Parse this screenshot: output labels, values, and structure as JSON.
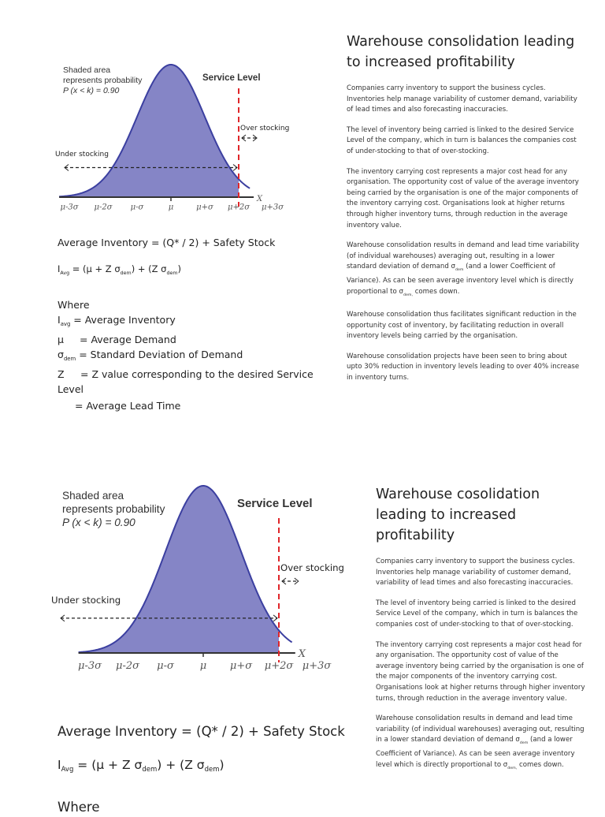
{
  "graph": {
    "shaded_note": [
      "Shaded area",
      "represents probability",
      "P (x < k) = 0.90"
    ],
    "service_level": "Service Level",
    "over_stocking": "Over stocking",
    "under_stocking": "Under stocking",
    "x_axis": "X",
    "ticks": [
      "μ-3σ",
      "μ-2σ",
      "μ-σ",
      "μ",
      "μ+σ",
      "μ+2σ",
      "μ+3σ"
    ],
    "probability": 0.9,
    "colors": {
      "fill": "#8585c6",
      "curve": "#3b3fa0",
      "service_line": "#e0262a"
    }
  },
  "formulas": {
    "avg_inventory": "Average Inventory = (Q* / 2) + Safety Stock",
    "i_avg_prefix": "I",
    "i_avg_sub": "Avg",
    "i_avg_eq1": " = (μ + Z σ",
    "dem": "dem",
    "i_avg_eq2": ") + (Z σ",
    "close": ")",
    "where": "Where",
    "def_iavg_sub": "avg",
    "def_iavg": " = Average Inventory",
    "def_mu_sym": "μ",
    "def_mu": "= Average Demand",
    "def_sigma_sym": "σ",
    "def_sigma": "= Standard Deviation of Demand",
    "def_z_sym": "Z",
    "def_z": "= Z value corresponding to the desired Service Level",
    "def_lt": "= Average Lead Time"
  },
  "slide1": {
    "title": "Warehouse consolidation leading to increased profitability",
    "paragraphs": [
      "Companies carry inventory to support the business cycles. Inventories help manage variability of customer demand, variability of lead times and also forecasting inaccuracies.",
      "The level of inventory being carried is linked to the desired Service Level of the company, which in turn is balances the companies cost of under-stocking to that of over-stocking.",
      "The inventory carrying cost represents a major cost head for any organisation. The opportunity cost of value of the average inventory being carried by the organisation is one of the major components of the inventory carrying cost. Organisations look at higher returns through higher inventory turns, through reduction in the average inventory value."
    ],
    "p4a": "Warehouse consolidation results in demand and lead time variability (of individual warehouses) averaging out, resulting in a lower standard deviation of demand σ",
    "p4_sub": "dem",
    "p4b": " (and a lower Coefficient of Variance). As can be seen average inventory level which is directly proportional to σ",
    "p4_sub2": "dem,",
    "p4c": " comes down.",
    "p5": "Warehouse consolidation thus facilitates significant reduction in the opportunity cost of inventory, by facilitating reduction in overall inventory levels being carried by the organisation.",
    "p6": "Warehouse consolidation projects have been seen to bring about upto 30% reduction in inventory levels leading to over 40% increase in inventory turns."
  },
  "slide2": {
    "title": "Warehouse cosolidation leading to increased profitability",
    "paragraphs": [
      "Companies carry inventory to support the business cycles. Inventories help manage variability of customer demand, variability of lead times and also forecasting inaccuracies.",
      "The level of inventory being carried is linked to the desired Service Level of the company, which in turn is balances the companies cost of under-stocking to that of over-stocking.",
      "The inventory carrying cost represents a major cost head for any organisation. The opportunity cost of value of the average inventory being carried by the organisation is one of the major components of the inventory carrying cost. Organisations look at higher returns through higher inventory turns, through reduction in the average inventory value."
    ],
    "p4a": "Warehouse consolidation results in demand and lead time variability (of individual warehouses) averaging out, resulting in a lower standard deviation of demand σ",
    "p4_sub": "dem",
    "p4b": " (and a lower Coefficient of Variance). As can be seen average inventory level which is directly proportional to σ",
    "p4_sub2": "dem,",
    "p4c": " comes down."
  }
}
